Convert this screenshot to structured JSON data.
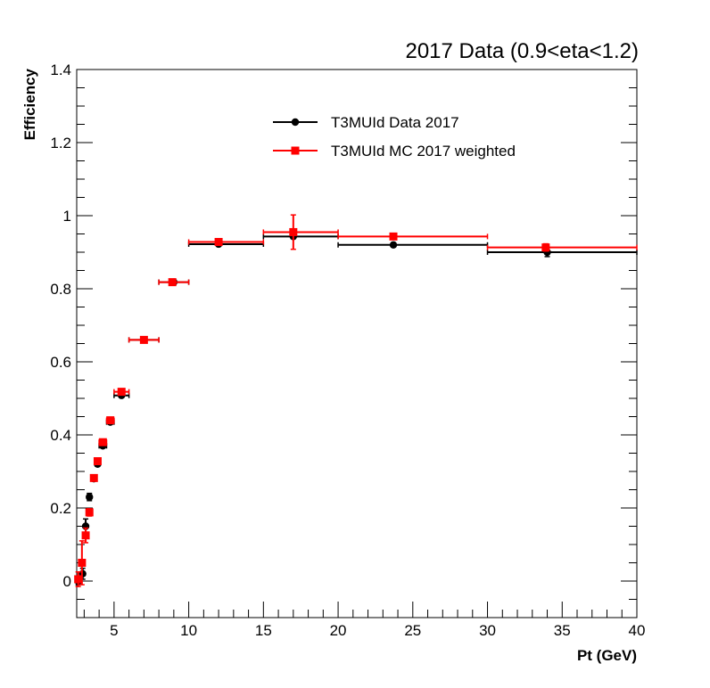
{
  "chart_data": {
    "type": "scatter",
    "title": "2017 Data (0.9<eta<1.2)",
    "xlabel": "Pt (GeV)",
    "ylabel": "Efficiency",
    "xlim": [
      2.5,
      40
    ],
    "ylim": [
      -0.1,
      1.4
    ],
    "xticks": [
      5,
      10,
      15,
      20,
      25,
      30,
      35,
      40
    ],
    "yticks": [
      0,
      0.2,
      0.4,
      0.6,
      0.8,
      1,
      1.2,
      1.4
    ],
    "ytick_labels": [
      "0",
      "0.2",
      "0.4",
      "0.6",
      "0.8",
      "1",
      "1.2",
      "1.4"
    ],
    "legend_position": "top-center",
    "series": [
      {
        "name": "T3MUId Data 2017",
        "color": "#000000",
        "marker": "circle",
        "points": [
          {
            "x": 2.6,
            "y": 0.0,
            "xlo": 2.5,
            "xhi": 2.75,
            "err": 0.01
          },
          {
            "x": 2.9,
            "y": 0.02,
            "xlo": 2.75,
            "xhi": 3.0,
            "err": 0.015
          },
          {
            "x": 3.1,
            "y": 0.15,
            "xlo": 3.0,
            "xhi": 3.2,
            "err": 0.02
          },
          {
            "x": 3.35,
            "y": 0.23,
            "xlo": 3.2,
            "xhi": 3.5,
            "err": 0.01
          },
          {
            "x": 3.65,
            "y": 0.28,
            "xlo": 3.5,
            "xhi": 3.75,
            "err": 0.005
          },
          {
            "x": 3.9,
            "y": 0.32,
            "xlo": 3.75,
            "xhi": 4.0,
            "err": 0.005
          },
          {
            "x": 4.25,
            "y": 0.37,
            "xlo": 4.0,
            "xhi": 4.5,
            "err": 0.005
          },
          {
            "x": 4.75,
            "y": 0.435,
            "xlo": 4.5,
            "xhi": 5.0,
            "err": 0.004
          },
          {
            "x": 5.5,
            "y": 0.508,
            "xlo": 5.0,
            "xhi": 6.0,
            "err": 0.003
          },
          {
            "x": 7.0,
            "y": 0.66,
            "xlo": 6.0,
            "xhi": 8.0,
            "err": 0.003
          },
          {
            "x": 9.0,
            "y": 0.818,
            "xlo": 8.0,
            "xhi": 10.0,
            "err": 0.003
          },
          {
            "x": 12.0,
            "y": 0.922,
            "xlo": 10.0,
            "xhi": 15.0,
            "err": 0.004
          },
          {
            "x": 17.0,
            "y": 0.943,
            "xlo": 15.0,
            "xhi": 20.0,
            "err": 0.005
          },
          {
            "x": 23.7,
            "y": 0.92,
            "xlo": 20.0,
            "xhi": 30.0,
            "err": 0.006
          },
          {
            "x": 34.0,
            "y": 0.9,
            "xlo": 30.0,
            "xhi": 40.0,
            "err": 0.012
          }
        ]
      },
      {
        "name": "T3MUId MC 2017 weighted",
        "color": "#ff0000",
        "marker": "square",
        "points": [
          {
            "x": 2.6,
            "y": 0.005,
            "xlo": 2.5,
            "xhi": 2.75,
            "err": 0.02
          },
          {
            "x": 2.85,
            "y": 0.05,
            "xlo": 2.75,
            "xhi": 3.0,
            "err": 0.06
          },
          {
            "x": 3.1,
            "y": 0.125,
            "xlo": 3.0,
            "xhi": 3.2,
            "err": 0.02
          },
          {
            "x": 3.35,
            "y": 0.188,
            "xlo": 3.2,
            "xhi": 3.5,
            "err": 0.01
          },
          {
            "x": 3.65,
            "y": 0.282,
            "xlo": 3.5,
            "xhi": 3.75,
            "err": 0.005
          },
          {
            "x": 3.9,
            "y": 0.328,
            "xlo": 3.75,
            "xhi": 4.0,
            "err": 0.005
          },
          {
            "x": 4.25,
            "y": 0.38,
            "xlo": 4.0,
            "xhi": 4.5,
            "err": 0.005
          },
          {
            "x": 4.75,
            "y": 0.44,
            "xlo": 4.5,
            "xhi": 5.0,
            "err": 0.004
          },
          {
            "x": 5.5,
            "y": 0.518,
            "xlo": 5.0,
            "xhi": 6.0,
            "err": 0.004
          },
          {
            "x": 7.0,
            "y": 0.66,
            "xlo": 6.0,
            "xhi": 8.0,
            "err": 0.004
          },
          {
            "x": 8.9,
            "y": 0.818,
            "xlo": 8.0,
            "xhi": 10.0,
            "err": 0.004
          },
          {
            "x": 12.0,
            "y": 0.928,
            "xlo": 10.0,
            "xhi": 15.0,
            "err": 0.006
          },
          {
            "x": 17.0,
            "y": 0.955,
            "xlo": 15.0,
            "xhi": 20.0,
            "err": 0.047
          },
          {
            "x": 23.7,
            "y": 0.943,
            "xlo": 20.0,
            "xhi": 30.0,
            "err": 0.008
          },
          {
            "x": 33.9,
            "y": 0.913,
            "xlo": 30.0,
            "xhi": 40.0,
            "err": 0.01
          }
        ]
      }
    ]
  }
}
